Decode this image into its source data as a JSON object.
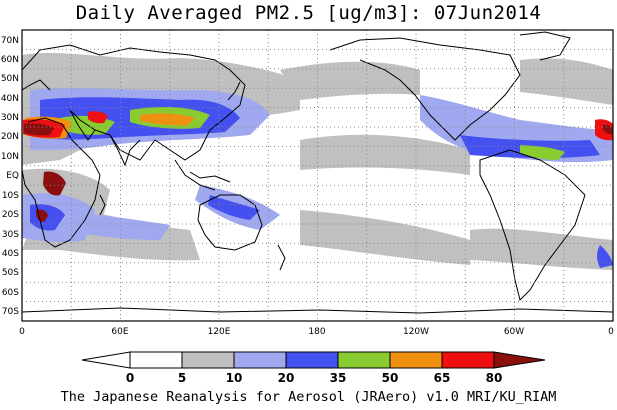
{
  "title": "Daily Averaged PM2.5 [ug/m3]: 07Jun2014",
  "footer": "The Japanese Reanalysis for Aerosol (JRAero) v1.0 MRI/KU_RIAM",
  "map": {
    "projection": "equirectangular, pacific-centered",
    "lon_range": [
      0,
      360
    ],
    "lat_range": [
      -75,
      75
    ],
    "lat_ticks": [
      "70N",
      "60N",
      "50N",
      "40N",
      "30N",
      "20N",
      "10N",
      "EQ",
      "10S",
      "20S",
      "30S",
      "40S",
      "50S",
      "60S",
      "70S"
    ],
    "lon_ticks": [
      "0",
      "60E",
      "120E",
      "180",
      "120W",
      "60W",
      "0"
    ],
    "gridlines": "dotted"
  },
  "colorbar": {
    "levels": [
      "0",
      "5",
      "10",
      "20",
      "35",
      "50",
      "65",
      "80"
    ],
    "colors": [
      "#ffffff",
      "#c0c0c0",
      "#a0a8f0",
      "#4450f0",
      "#88cc30",
      "#f09010",
      "#ee1010",
      "#8a1010"
    ]
  },
  "colors": {
    "grey": "#c0c0c0",
    "light_blue": "#a0a8f0",
    "blue": "#4450f0",
    "green": "#88cc30",
    "orange": "#f09010",
    "red": "#ee1010",
    "dark_red": "#8a1010"
  }
}
